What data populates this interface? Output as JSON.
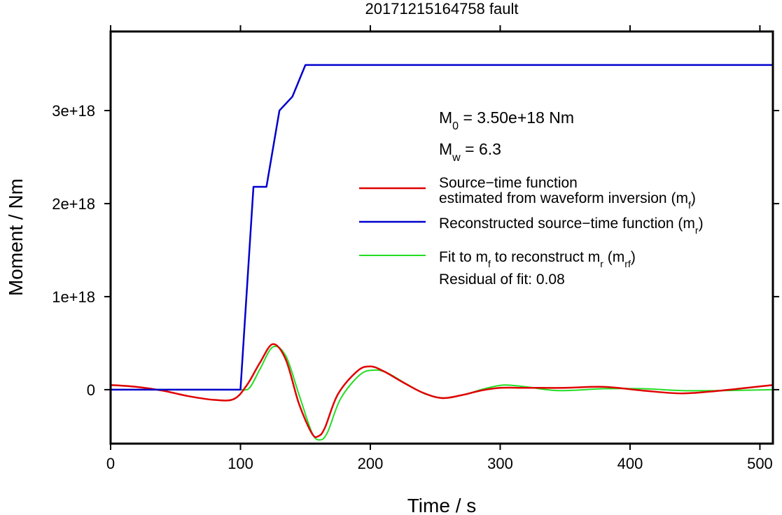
{
  "chart_data": {
    "type": "line",
    "title": "20171215164758 fault",
    "xlabel": "Time / s",
    "ylabel": "Moment / Nm",
    "xlim": [
      0,
      510
    ],
    "ylim": [
      -5.8e+17,
      3.85e+18
    ],
    "xticks": [
      0,
      100,
      200,
      300,
      400,
      500
    ],
    "xtick_labels": [
      "0",
      "100",
      "200",
      "300",
      "400",
      "500"
    ],
    "yticks": [
      0,
      1e+18,
      2e+18,
      3e+18
    ],
    "ytick_labels": [
      "0",
      "1e+18",
      "2e+18",
      "3e+18"
    ],
    "grid": false,
    "legend_position": "center-right",
    "annotations": {
      "m0": {
        "base": "M",
        "sub": "0",
        "text": " = 3.50e+18 Nm"
      },
      "mw": {
        "base": "M",
        "sub": "w",
        "text": " = 6.3"
      },
      "residual": "Residual of fit: 0.08"
    },
    "series": [
      {
        "key": "stf",
        "color": "#e00000",
        "legend_lines": [
          "Source−time function",
          "estimated from waveform inversion (m",
          "f",
          ")"
        ],
        "x": [
          0,
          20,
          40,
          60,
          80,
          95,
          105,
          115,
          125,
          135,
          145,
          155,
          160,
          165,
          175,
          190,
          200,
          210,
          225,
          240,
          255,
          270,
          285,
          300,
          320,
          350,
          380,
          410,
          440,
          470,
          490,
          510
        ],
        "y": [
          5e+16,
          3e+16,
          -1e+16,
          -7e+16,
          -1.1e+17,
          -1e+17,
          5e+16,
          2.9e+17,
          4.9e+17,
          3.2e+17,
          -1.5e+17,
          -4.7e+17,
          -5e+17,
          -4.1e+17,
          -5e+16,
          2e+17,
          2.5e+17,
          2e+17,
          8e+16,
          -3e+16,
          -9e+16,
          -6e+16,
          -1e+16,
          2e+16,
          2e+16,
          2e+16,
          3e+16,
          -1e+16,
          -4e+16,
          -1e+16,
          2e+16,
          5e+16
        ]
      },
      {
        "key": "rec",
        "color": "#0000cc",
        "legend_lines": [
          "Reconstructed source−time function (m",
          "r",
          ")"
        ],
        "x": [
          0,
          100,
          110,
          120,
          130,
          140,
          150,
          510
        ],
        "y": [
          0,
          0,
          2.18e+18,
          2.18e+18,
          3e+18,
          3.15e+18,
          3.49e+18,
          3.49e+18
        ]
      },
      {
        "key": "fit",
        "color": "#22dd22",
        "legend_lines": [
          "Fit to m",
          "f",
          " to reconstruct m",
          "r",
          " (m",
          "rf",
          ")"
        ],
        "x": [
          0,
          40,
          80,
          100,
          107,
          115,
          125,
          135,
          145,
          155,
          161,
          167,
          177,
          192,
          203,
          213,
          228,
          243,
          258,
          273,
          288,
          303,
          320,
          345,
          380,
          410,
          440,
          470,
          510
        ],
        "y": [
          0,
          0,
          0,
          0,
          2e+16,
          2.2e+17,
          4.6e+17,
          3.6e+17,
          -5e+16,
          -4.6e+17,
          -5.4e+17,
          -4.6e+17,
          -1e+17,
          1.6e+17,
          2.1e+17,
          1.8e+17,
          6e+16,
          -5e+16,
          -9e+16,
          -5e+16,
          1e+16,
          5e+16,
          3e+16,
          -1e+16,
          1e+16,
          1e+16,
          -1e+16,
          -1e+16,
          0
        ]
      }
    ]
  }
}
